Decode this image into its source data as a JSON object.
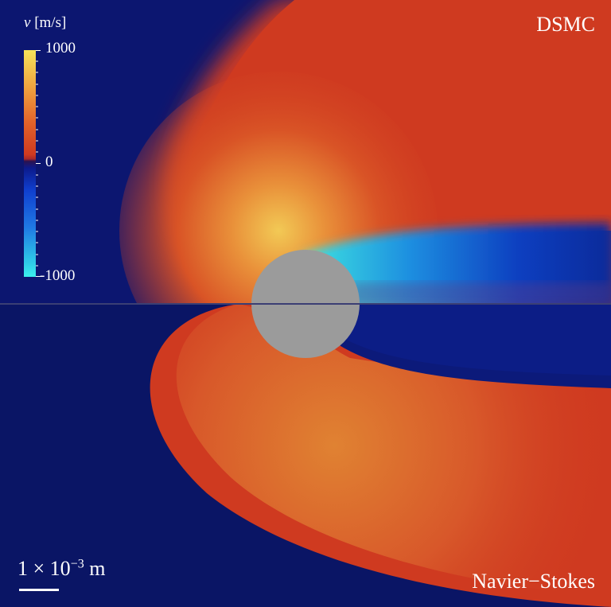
{
  "panels": {
    "top_label": "DSMC",
    "bottom_label": "Navier−Stokes"
  },
  "colorbar": {
    "variable": "v",
    "unit": "[m/s]",
    "max_label": "1000",
    "zero_label": "0",
    "min_label": "-1000",
    "max_value": 1000,
    "min_value": -1000
  },
  "scale_bar": {
    "mantissa": "1",
    "times": "×",
    "base": "10",
    "exponent": "−3",
    "unit": "m"
  },
  "colors": {
    "background_blue": "#0a1565",
    "flow_red": "#cf3a20",
    "flow_orange": "#e2742e",
    "flow_yellow": "#f2cc55",
    "wake_cyan": "#3cf0ee",
    "cylinder_gray": "#9b9b9b"
  }
}
